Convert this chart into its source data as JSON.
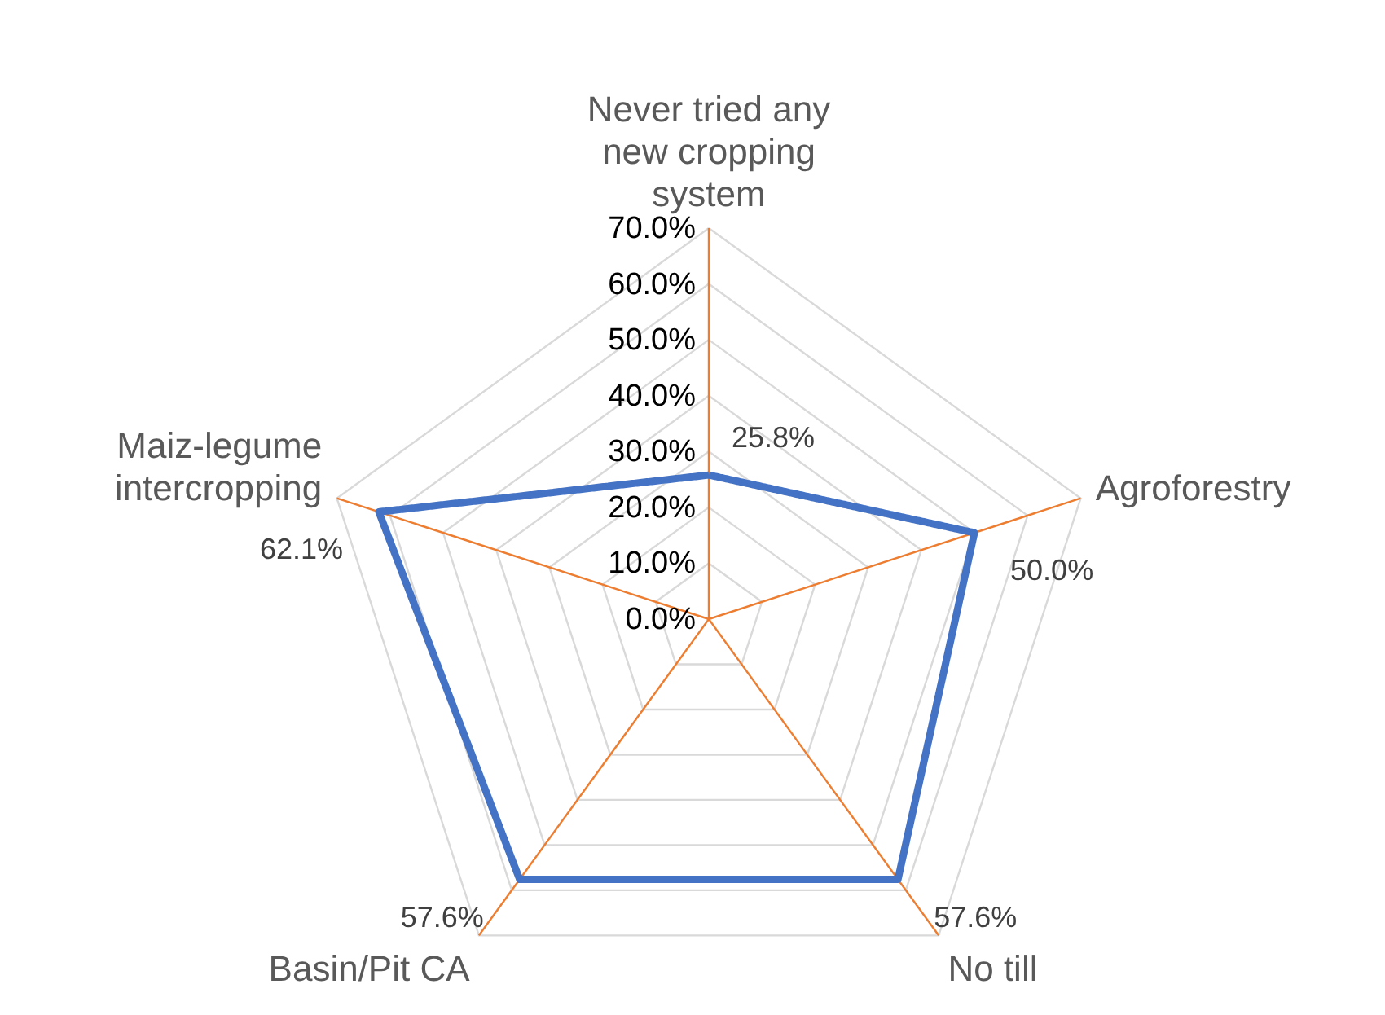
{
  "chart_data": {
    "type": "radar",
    "categories": [
      "Never tried any\nnew cropping\nsystem",
      "Agroforestry",
      "No till",
      "Basin/Pit CA",
      "Maiz-legume\nintercropping"
    ],
    "series": [
      {
        "color": "#4472c4",
        "values": [
          25.8,
          50.0,
          57.6,
          57.6,
          62.1
        ],
        "value_labels": [
          "25.8%",
          "50.0%",
          "57.6%",
          "57.6%",
          "62.1%"
        ]
      }
    ],
    "ylim": [
      0,
      70
    ],
    "yticks": [
      {
        "value": 0,
        "label": "0.0%"
      },
      {
        "value": 10,
        "label": "10.0%"
      },
      {
        "value": 20,
        "label": "20.0%"
      },
      {
        "value": 30,
        "label": "30.0%"
      },
      {
        "value": 40,
        "label": "40.0%"
      },
      {
        "value": 50,
        "label": "50.0%"
      },
      {
        "value": 60,
        "label": "60.0%"
      },
      {
        "value": 70,
        "label": "70.0%"
      }
    ],
    "grid": true,
    "marker": "none",
    "line_style": "solid"
  }
}
